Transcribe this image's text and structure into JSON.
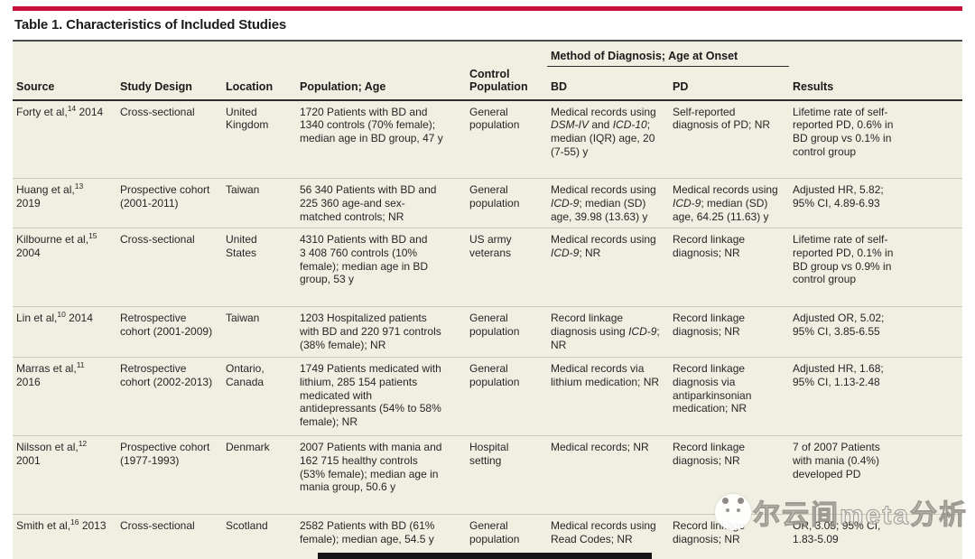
{
  "page": {
    "title": "Table 1. Characteristics of Included Studies",
    "accent_color": "#c9113d",
    "table_background": "#f0efe2"
  },
  "table": {
    "group_header": "Method of Diagnosis; Age at Onset",
    "columns": [
      "Source",
      "Study Design",
      "Location",
      "Population; Age",
      "Control Population",
      "BD",
      "PD",
      "Results"
    ],
    "rows": [
      {
        "source": "Forty et al,^14^ 2014",
        "design": "Cross-sectional",
        "location": "United Kingdom",
        "population": "1720 Patients with BD and 1340 controls (70% female); median age in BD group, 47 y",
        "control": "General population",
        "bd": "Medical records using *DSM-IV* and *ICD-10*; median (IQR) age, 20 (7-55) y",
        "pd": "Self-reported diagnosis of PD; NR",
        "results": "Lifetime rate of self-reported PD, 0.6% in BD group vs 0.1% in control group"
      },
      {
        "source": "Huang et al,^13^ 2019",
        "design": "Prospective cohort (2001-2011)",
        "location": "Taiwan",
        "population": "56 340 Patients with BD and 225 360 age-and sex-matched controls; NR",
        "control": "General population",
        "bd": "Medical records using *ICD-9*; median (SD) age, 39.98 (13.63) y",
        "pd": "Medical records using *ICD-9*; median (SD) age, 64.25 (11.63) y",
        "results": "Adjusted HR, 5.82; 95% CI, 4.89-6.93"
      },
      {
        "source": "Kilbourne et al,^15^ 2004",
        "design": "Cross-sectional",
        "location": "United States",
        "population": "4310 Patients with BD and 3 408 760 controls (10% female); median age in BD group, 53 y",
        "control": "US army veterans",
        "bd": "Medical records using *ICD-9*; NR",
        "pd": "Record linkage diagnosis; NR",
        "results": "Lifetime rate of self-reported PD, 0.1% in BD group vs 0.9% in control group"
      },
      {
        "source": "Lin et al,^10^ 2014",
        "design": "Retrospective cohort (2001-2009)",
        "location": "Taiwan",
        "population": "1203 Hospitalized patients with BD and 220 971 controls (38% female); NR",
        "control": "General population",
        "bd": "Record linkage diagnosis using *ICD-9*; NR",
        "pd": "Record linkage diagnosis; NR",
        "results": "Adjusted OR, 5.02; 95% CI, 3.85-6.55"
      },
      {
        "source": "Marras et al,^11^ 2016",
        "design": "Retrospective cohort (2002-2013)",
        "location": "Ontario, Canada",
        "population": "1749 Patients medicated with lithium, 285 154 patients medicated with antidepressants (54% to 58% female); NR",
        "control": "General population",
        "bd": "Medical records via lithium medication; NR",
        "pd": "Record linkage diagnosis via antiparkinsonian medication; NR",
        "results": "Adjusted HR, 1.68; 95% CI, 1.13-2.48"
      },
      {
        "source": "Nilsson et al,^12^ 2001",
        "design": "Prospective cohort (1977-1993)",
        "location": "Denmark",
        "population": "2007 Patients with mania and 162 715 healthy controls (53% female); median age in mania group, 50.6 y",
        "control": "Hospital setting",
        "bd": "Medical records; NR",
        "pd": "Record linkage diagnosis; NR",
        "results": "7 of 2007 Patients with mania (0.4%) developed PD"
      },
      {
        "source": "Smith et al,^16^ 2013",
        "design": "Cross-sectional",
        "location": "Scotland",
        "population": "2582 Patients with BD (61% female); median age, 54.5 y",
        "control": "General population",
        "bd": "Medical records using Read Codes; NR",
        "pd": "Record linkage diagnosis; NR",
        "results": "OR, 3.05; 95% CI, 1.83-5.09"
      }
    ]
  },
  "watermark": {
    "text": "尔云间meta分析",
    "logo": "panda-face-logo"
  }
}
